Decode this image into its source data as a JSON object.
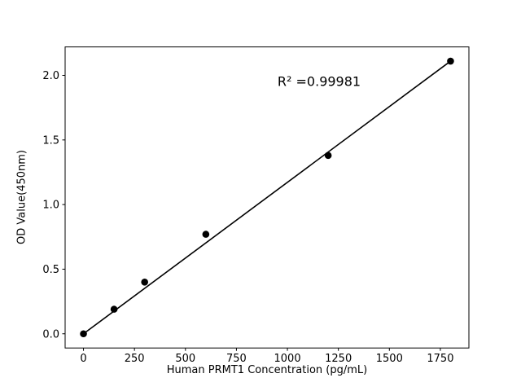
{
  "chart_data": {
    "type": "scatter",
    "x": [
      0,
      150,
      300,
      600,
      1200,
      1800
    ],
    "y": [
      0.0,
      0.19,
      0.4,
      0.77,
      1.38,
      2.11
    ],
    "fit_line": {
      "x": [
        0,
        1800
      ],
      "y": [
        0.0,
        2.11
      ]
    },
    "annotation": "R² =0.99981",
    "xlabel": "Human PRMT1 Concentration (pg/mL)",
    "ylabel": "OD Value(450nm)",
    "xticks": [
      0,
      250,
      500,
      750,
      1000,
      1250,
      1500,
      1750
    ],
    "yticks": [
      0.0,
      0.5,
      1.0,
      1.5,
      2.0
    ],
    "xlim": [
      -90,
      1890
    ],
    "ylim": [
      -0.11,
      2.22
    ],
    "grid": false,
    "legend": null,
    "title": "",
    "marker_color": "#000000",
    "line_color": "#000000",
    "background": "#ffffff"
  }
}
